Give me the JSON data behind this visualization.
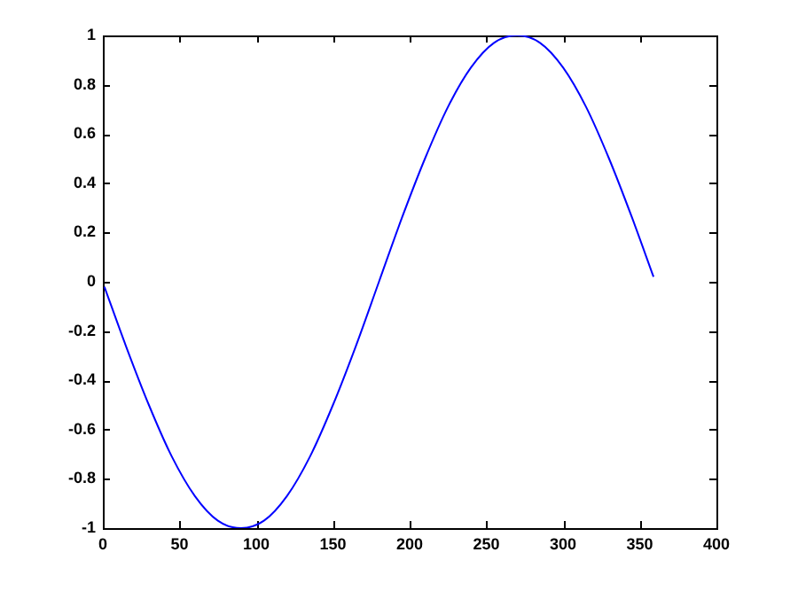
{
  "chart_data": {
    "type": "line",
    "x": [
      1,
      15,
      30,
      45,
      60,
      75,
      90,
      105,
      120,
      135,
      150,
      165,
      180,
      195,
      210,
      225,
      240,
      255,
      270,
      285,
      300,
      315,
      330,
      345,
      359
    ],
    "series": [
      {
        "color": "#0000ff",
        "values": [
          -0.02,
          -0.26,
          -0.5,
          -0.71,
          -0.87,
          -0.97,
          -1,
          -0.97,
          -0.87,
          -0.71,
          -0.5,
          -0.26,
          0,
          0.26,
          0.5,
          0.71,
          0.87,
          0.97,
          1,
          0.97,
          0.87,
          0.71,
          0.5,
          0.26,
          0.02
        ]
      }
    ],
    "xlim": [
      0,
      400
    ],
    "xticks": [
      0,
      50,
      100,
      150,
      200,
      250,
      300,
      350,
      400
    ],
    "ylim": [
      -1,
      1
    ],
    "yticks": [
      -1,
      -0.8,
      -0.6,
      -0.4,
      -0.2,
      0,
      0.2,
      0.4,
      0.6,
      0.8,
      1
    ],
    "grid": false,
    "legend": false,
    "marker": "none",
    "line_style": "solid"
  }
}
